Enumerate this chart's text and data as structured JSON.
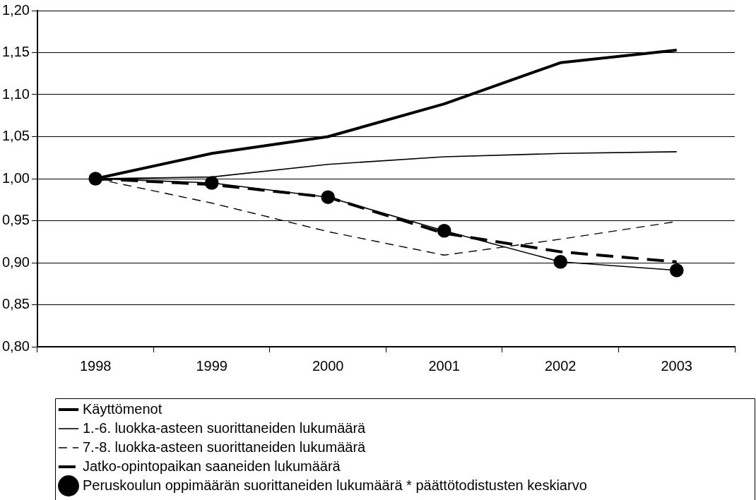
{
  "chart_data": {
    "type": "line",
    "categories": [
      "1998",
      "1999",
      "2000",
      "2001",
      "2002",
      "2003"
    ],
    "series": [
      {
        "name": "Käyttömenot",
        "color": "#000000",
        "line_style": "solid",
        "marker": "none",
        "values": [
          1.0,
          1.03,
          1.05,
          1.089,
          1.138,
          1.153
        ]
      },
      {
        "name": "1.-6. luokka-asteen suorittaneiden lukumäärä",
        "color": "#000000",
        "line_style": "solid",
        "marker": "none",
        "values": [
          1.0,
          1.002,
          1.017,
          1.026,
          1.03,
          1.032
        ]
      },
      {
        "name": "7.-8. luokka-asteen suorittaneiden lukumäärä",
        "color": "#000000",
        "line_style": "dashed",
        "marker": "none",
        "values": [
          1.0,
          0.971,
          0.937,
          0.909,
          0.928,
          0.949
        ]
      },
      {
        "name": "Jatko-opintopaikan saaneiden lukumäärä",
        "color": "#000000",
        "line_style": "dashed",
        "marker": "none",
        "values": [
          1.0,
          0.993,
          0.978,
          0.935,
          0.913,
          0.901
        ]
      },
      {
        "name": "Peruskoulun oppimäärän suorittaneiden lukumäärä * päättötodistusten keskiarvo",
        "color": "#000000",
        "line_style": "solid",
        "marker": "circle",
        "values": [
          1.0,
          0.995,
          0.978,
          0.938,
          0.901,
          0.891
        ]
      }
    ],
    "ylim": [
      0.8,
      1.2
    ],
    "yticks": [
      {
        "value": 0.8,
        "label": "0,80"
      },
      {
        "value": 0.85,
        "label": "0,85"
      },
      {
        "value": 0.9,
        "label": "0,90"
      },
      {
        "value": 0.95,
        "label": "0,95"
      },
      {
        "value": 1.0,
        "label": "1,00"
      },
      {
        "value": 1.05,
        "label": "1,05"
      },
      {
        "value": 1.1,
        "label": "1,10"
      },
      {
        "value": 1.15,
        "label": "1,15"
      },
      {
        "value": 1.2,
        "label": "1,20"
      }
    ],
    "grid": "y",
    "legend": "bottom"
  }
}
